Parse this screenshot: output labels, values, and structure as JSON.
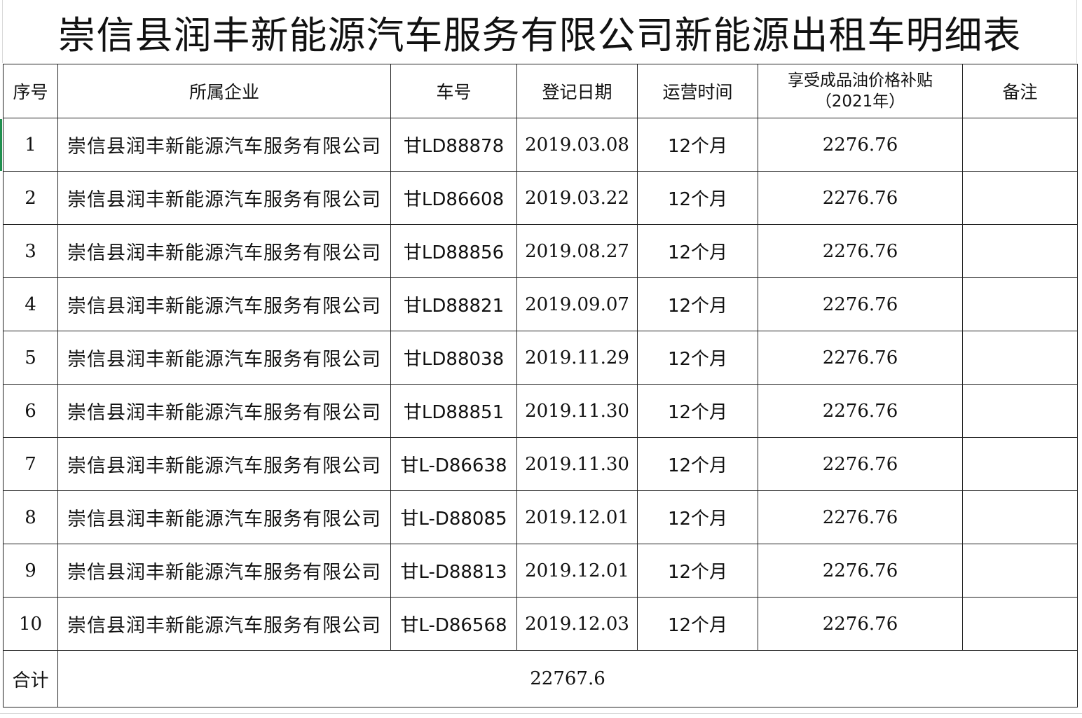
{
  "title": "崇信县润丰新能源汽车服务有限公司新能源出租车明细表",
  "headers": {
    "seq": "序号",
    "company": "所属企业",
    "plate": "车号",
    "reg_date": "登记日期",
    "op_time": "运营时间",
    "subsidy_line1": "享受成品油价格补贴",
    "subsidy_line2": "（2021年）",
    "remarks": "备注"
  },
  "rows": [
    {
      "seq": "1",
      "company": "崇信县润丰新能源汽车服务有限公司",
      "plate": "甘LD88878",
      "reg_date": "2019.03.08",
      "op_time": "12个月",
      "subsidy": "2276.76",
      "remarks": ""
    },
    {
      "seq": "2",
      "company": "崇信县润丰新能源汽车服务有限公司",
      "plate": "甘LD86608",
      "reg_date": "2019.03.22",
      "op_time": "12个月",
      "subsidy": "2276.76",
      "remarks": ""
    },
    {
      "seq": "3",
      "company": "崇信县润丰新能源汽车服务有限公司",
      "plate": "甘LD88856",
      "reg_date": "2019.08.27",
      "op_time": "12个月",
      "subsidy": "2276.76",
      "remarks": ""
    },
    {
      "seq": "4",
      "company": "崇信县润丰新能源汽车服务有限公司",
      "plate": "甘LD88821",
      "reg_date": "2019.09.07",
      "op_time": "12个月",
      "subsidy": "2276.76",
      "remarks": ""
    },
    {
      "seq": "5",
      "company": "崇信县润丰新能源汽车服务有限公司",
      "plate": "甘LD88038",
      "reg_date": "2019.11.29",
      "op_time": "12个月",
      "subsidy": "2276.76",
      "remarks": ""
    },
    {
      "seq": "6",
      "company": "崇信县润丰新能源汽车服务有限公司",
      "plate": "甘LD88851",
      "reg_date": "2019.11.30",
      "op_time": "12个月",
      "subsidy": "2276.76",
      "remarks": ""
    },
    {
      "seq": "7",
      "company": "崇信县润丰新能源汽车服务有限公司",
      "plate": "甘L-D86638",
      "reg_date": "2019.11.30",
      "op_time": "12个月",
      "subsidy": "2276.76",
      "remarks": ""
    },
    {
      "seq": "8",
      "company": "崇信县润丰新能源汽车服务有限公司",
      "plate": "甘L-D88085",
      "reg_date": "2019.12.01",
      "op_time": "12个月",
      "subsidy": "2276.76",
      "remarks": ""
    },
    {
      "seq": "9",
      "company": "崇信县润丰新能源汽车服务有限公司",
      "plate": "甘L-D88813",
      "reg_date": "2019.12.01",
      "op_time": "12个月",
      "subsidy": "2276.76",
      "remarks": ""
    },
    {
      "seq": "10",
      "company": "崇信县润丰新能源汽车服务有限公司",
      "plate": "甘L-D86568",
      "reg_date": "2019.12.03",
      "op_time": "12个月",
      "subsidy": "2276.76",
      "remarks": ""
    }
  ],
  "total": {
    "label": "合计",
    "value": "22767.6"
  }
}
